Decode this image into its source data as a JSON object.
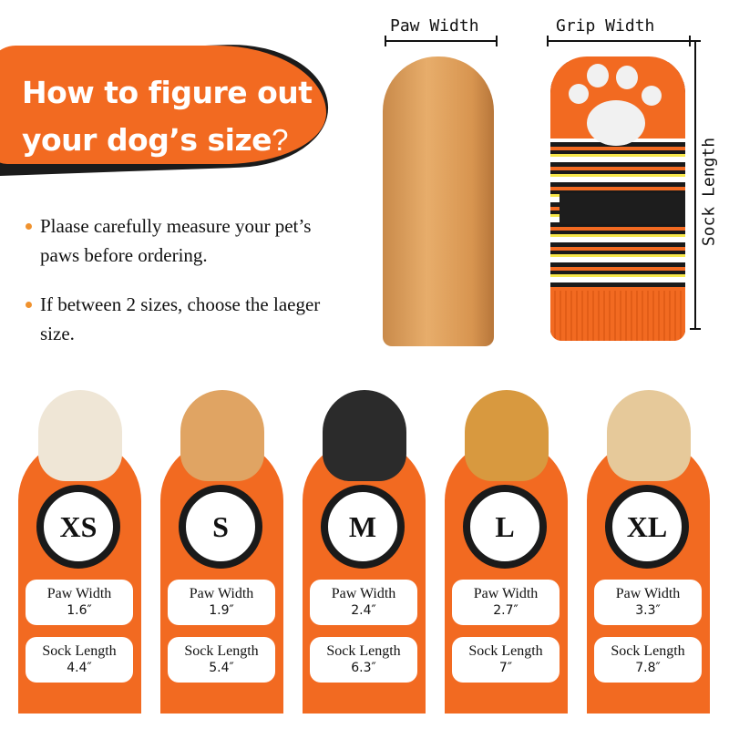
{
  "header": {
    "title_line1": "How to figure out",
    "title_line2": "your dog’s size",
    "title_mark": "?"
  },
  "tips": [
    "Plaase carefully measure your pet’s paws before ordering.",
    "If between 2 sizes, choose the laeger size."
  ],
  "measurements": {
    "paw_width_label": "Paw Width",
    "grip_width_label": "Grip Width",
    "sock_length_label": "Sock Length"
  },
  "colors": {
    "accent": "#f26a21",
    "ring": "#1a1a1a"
  },
  "sizes": [
    {
      "size": "XS",
      "paw_label": "Paw Width",
      "paw_value": "1.6″",
      "sock_label": "Sock Length",
      "sock_value": "4.4″"
    },
    {
      "size": "S",
      "paw_label": "Paw Width",
      "paw_value": "1.9″",
      "sock_label": "Sock Length",
      "sock_value": "5.4″"
    },
    {
      "size": "M",
      "paw_label": "Paw Width",
      "paw_value": "2.4″",
      "sock_label": "Sock Length",
      "sock_value": "6.3″"
    },
    {
      "size": "L",
      "paw_label": "Paw Width",
      "paw_value": "2.7″",
      "sock_label": "Sock Length",
      "sock_value": "7″"
    },
    {
      "size": "XL",
      "paw_label": "Paw Width",
      "paw_value": "3.3″",
      "sock_label": "Sock Length",
      "sock_value": "7.8″"
    }
  ]
}
